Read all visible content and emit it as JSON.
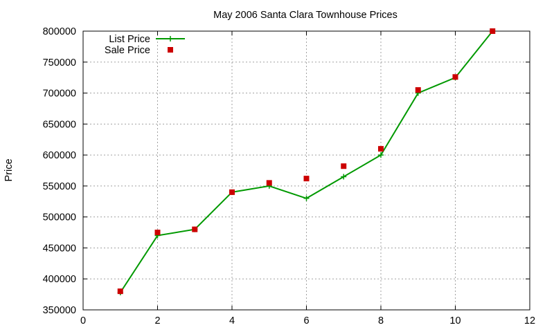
{
  "chart_data": {
    "type": "line",
    "title": "May 2006 Santa Clara Townhouse Prices",
    "xlabel": "",
    "ylabel": "Price",
    "xlim": [
      0,
      12
    ],
    "ylim": [
      350000,
      800000
    ],
    "x_ticks": [
      0,
      2,
      4,
      6,
      8,
      10,
      12
    ],
    "y_ticks": [
      350000,
      400000,
      450000,
      500000,
      550000,
      600000,
      650000,
      700000,
      750000,
      800000
    ],
    "grid": true,
    "legend_position": "top-left",
    "series": [
      {
        "name": "List Price",
        "style": "line-plus",
        "color": "#009900",
        "x": [
          1,
          2,
          3,
          4,
          5,
          6,
          7,
          8,
          9,
          10,
          11
        ],
        "values": [
          378000,
          470000,
          480000,
          540000,
          550000,
          530000,
          565000,
          600000,
          700000,
          725000,
          800000
        ]
      },
      {
        "name": "Sale Price",
        "style": "square-markers",
        "color": "#cc0000",
        "x": [
          1,
          2,
          3,
          4,
          5,
          6,
          7,
          8,
          9,
          10,
          11
        ],
        "values": [
          380000,
          475000,
          480000,
          540000,
          555000,
          562000,
          582000,
          610000,
          705000,
          726000,
          800000
        ]
      }
    ]
  }
}
